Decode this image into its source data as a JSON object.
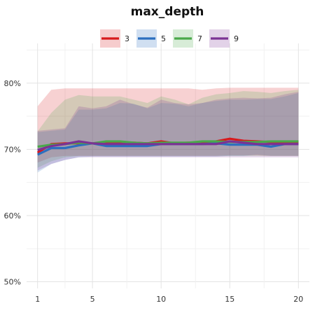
{
  "chart_data": {
    "type": "line",
    "title": "max_depth",
    "xlabel": "",
    "ylabel": "",
    "x": [
      1,
      2,
      3,
      4,
      5,
      6,
      7,
      8,
      9,
      10,
      11,
      12,
      13,
      14,
      15,
      16,
      17,
      18,
      19,
      20
    ],
    "x_ticks": [
      1,
      5,
      10,
      15,
      20
    ],
    "x_tick_labels": [
      "1",
      "5",
      "10",
      "15",
      "20"
    ],
    "xlim": [
      0.2,
      20.8
    ],
    "ylim": [
      0.49,
      0.86
    ],
    "y_ticks": [
      0.5,
      0.6,
      0.7,
      0.8
    ],
    "y_tick_labels": [
      "50%",
      "60%",
      "70%",
      "80%"
    ],
    "grid": true,
    "legend_position": "top",
    "series": [
      {
        "name": "3",
        "color": "#d7191c",
        "values": [
          0.695,
          0.708,
          0.709,
          0.709,
          0.709,
          0.709,
          0.709,
          0.71,
          0.709,
          0.712,
          0.709,
          0.71,
          0.71,
          0.712,
          0.716,
          0.713,
          0.712,
          0.711,
          0.711,
          0.711
        ],
        "lower": [
          0.68,
          0.688,
          0.69,
          0.69,
          0.69,
          0.69,
          0.69,
          0.69,
          0.69,
          0.69,
          0.69,
          0.69,
          0.69,
          0.69,
          0.691,
          0.691,
          0.691,
          0.69,
          0.69,
          0.69
        ],
        "upper": [
          0.765,
          0.79,
          0.792,
          0.792,
          0.792,
          0.792,
          0.792,
          0.792,
          0.792,
          0.792,
          0.792,
          0.792,
          0.79,
          0.792,
          0.793,
          0.793,
          0.793,
          0.793,
          0.793,
          0.793
        ]
      },
      {
        "name": "5",
        "color": "#2b6fbf",
        "values": [
          0.692,
          0.702,
          0.702,
          0.706,
          0.709,
          0.705,
          0.705,
          0.705,
          0.705,
          0.708,
          0.708,
          0.708,
          0.708,
          0.709,
          0.707,
          0.707,
          0.707,
          0.704,
          0.708,
          0.708
        ],
        "lower": [
          0.665,
          0.678,
          0.684,
          0.688,
          0.689,
          0.689,
          0.689,
          0.689,
          0.689,
          0.689,
          0.689,
          0.689,
          0.689,
          0.689,
          0.69,
          0.69,
          0.692,
          0.69,
          0.69,
          0.69
        ],
        "upper": [
          0.726,
          0.728,
          0.73,
          0.76,
          0.76,
          0.762,
          0.77,
          0.769,
          0.762,
          0.77,
          0.769,
          0.765,
          0.77,
          0.773,
          0.775,
          0.775,
          0.776,
          0.776,
          0.78,
          0.785
        ]
      },
      {
        "name": "7",
        "color": "#4aa84a",
        "values": [
          0.704,
          0.707,
          0.708,
          0.71,
          0.709,
          0.712,
          0.712,
          0.71,
          0.709,
          0.71,
          0.71,
          0.71,
          0.712,
          0.712,
          0.711,
          0.711,
          0.711,
          0.712,
          0.712,
          0.712
        ],
        "lower": [
          0.672,
          0.682,
          0.688,
          0.69,
          0.69,
          0.69,
          0.69,
          0.69,
          0.69,
          0.69,
          0.69,
          0.69,
          0.69,
          0.69,
          0.69,
          0.69,
          0.69,
          0.69,
          0.69,
          0.69
        ],
        "upper": [
          0.727,
          0.755,
          0.775,
          0.782,
          0.78,
          0.78,
          0.78,
          0.775,
          0.77,
          0.78,
          0.775,
          0.768,
          0.778,
          0.783,
          0.785,
          0.788,
          0.787,
          0.785,
          0.788,
          0.79
        ]
      },
      {
        "name": "9",
        "color": "#7b3294",
        "values": [
          0.699,
          0.705,
          0.708,
          0.712,
          0.709,
          0.708,
          0.708,
          0.708,
          0.708,
          0.708,
          0.708,
          0.708,
          0.708,
          0.708,
          0.712,
          0.71,
          0.708,
          0.708,
          0.708,
          0.708
        ],
        "lower": [
          0.668,
          0.678,
          0.684,
          0.688,
          0.688,
          0.688,
          0.688,
          0.688,
          0.688,
          0.688,
          0.688,
          0.688,
          0.688,
          0.688,
          0.688,
          0.688,
          0.688,
          0.688,
          0.688,
          0.688
        ],
        "upper": [
          0.728,
          0.73,
          0.732,
          0.765,
          0.762,
          0.765,
          0.775,
          0.768,
          0.763,
          0.775,
          0.77,
          0.768,
          0.77,
          0.775,
          0.777,
          0.778,
          0.777,
          0.778,
          0.783,
          0.787
        ]
      }
    ]
  }
}
